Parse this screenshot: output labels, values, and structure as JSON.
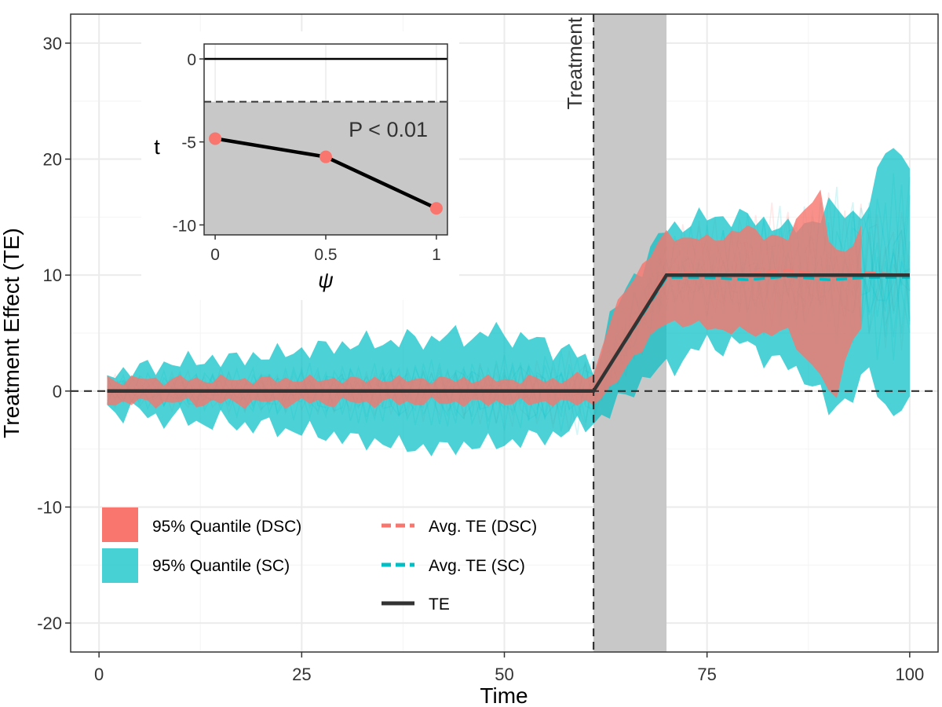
{
  "colors": {
    "dsc": "#f8766d",
    "sc": "#00bfc4",
    "te": "#333333",
    "shade": "#c8c8c8",
    "grid": "#ebebeb",
    "grid_minor": "#f4f4f4",
    "frame": "#333333"
  },
  "chart_data": [
    {
      "type": "area",
      "title": "",
      "xlabel": "Time",
      "ylabel": "Treatment Effect (TE)",
      "xlim": [
        -3.5,
        103.5
      ],
      "ylim": [
        -22.5,
        32.5
      ],
      "xticks": [
        0,
        25,
        50,
        75,
        100
      ],
      "xtick_labels": [
        "0",
        "25",
        "50",
        "75",
        "100"
      ],
      "yticks": [
        -20,
        -10,
        0,
        10,
        20,
        30
      ],
      "ytick_labels": [
        "-20",
        "-10",
        "0",
        "10",
        "20",
        "30"
      ],
      "grid": true,
      "treatment_time": 61,
      "treatment_label": "Treatment",
      "shaded_window": [
        61,
        70
      ],
      "zero_reference": 0,
      "series": [
        {
          "name": "95% Quantile (SC)",
          "kind": "ribbon",
          "x_range": [
            1,
            100
          ],
          "x_knots": [
            1,
            10,
            20,
            30,
            40,
            50,
            58,
            61,
            63,
            66,
            70,
            75,
            80,
            85,
            88,
            90,
            93,
            95,
            97,
            100
          ],
          "upper": [
            1.5,
            2.5,
            3.0,
            4.0,
            4.5,
            5.0,
            3.5,
            2.0,
            6.0,
            10.0,
            14.0,
            15.0,
            15.0,
            14.0,
            14.5,
            16.0,
            15.0,
            16.0,
            21.0,
            20.0
          ],
          "lower": [
            -1.5,
            -2.5,
            -3.0,
            -4.0,
            -5.0,
            -4.5,
            -3.5,
            -2.5,
            -2.0,
            0.5,
            2.0,
            4.0,
            4.0,
            2.0,
            1.0,
            -2.0,
            0.0,
            1.5,
            -1.5,
            -1.5
          ],
          "noise": 1.3
        },
        {
          "name": "95% Quantile (DSC)",
          "kind": "ribbon",
          "x_range": [
            1,
            94
          ],
          "x_knots": [
            1,
            10,
            20,
            30,
            40,
            50,
            58,
            61,
            63,
            66,
            70,
            75,
            80,
            85,
            87,
            89,
            90,
            91,
            92,
            94
          ],
          "upper": [
            1.0,
            1.0,
            1.0,
            1.0,
            1.0,
            1.0,
            1.0,
            1.5,
            6.0,
            10.0,
            13.5,
            13.0,
            14.0,
            13.0,
            16.0,
            17.0,
            13.0,
            12.0,
            12.0,
            14.0
          ],
          "lower": [
            -1.0,
            -1.0,
            -1.0,
            -1.0,
            -1.0,
            -1.0,
            -1.0,
            -1.0,
            0.0,
            3.0,
            6.0,
            5.5,
            5.0,
            5.0,
            3.0,
            1.5,
            -0.5,
            -0.5,
            3.0,
            5.5
          ],
          "noise": 0.6
        },
        {
          "name": "Avg. TE (DSC)",
          "kind": "line",
          "style": "dashed",
          "x": [
            1,
            61,
            70,
            75,
            80,
            85,
            90,
            95,
            100
          ],
          "y": [
            0,
            0,
            10.2,
            10.1,
            10.1,
            10.4,
            10.0,
            10.2,
            10.0
          ]
        },
        {
          "name": "Avg. TE (SC)",
          "kind": "line",
          "style": "dashed",
          "x": [
            1,
            61,
            70,
            75,
            80,
            85,
            90,
            95,
            100
          ],
          "y": [
            0,
            0,
            9.8,
            9.8,
            9.6,
            9.9,
            9.6,
            9.8,
            9.8
          ]
        },
        {
          "name": "TE",
          "kind": "line",
          "style": "solid",
          "x": [
            1,
            61,
            70,
            100
          ],
          "y": [
            0,
            0,
            10,
            10
          ]
        }
      ],
      "legend": {
        "position": "bottom-left",
        "entries": [
          {
            "label": "95% Quantile (DSC)",
            "key": "fill-dsc"
          },
          {
            "label": "95% Quantile (SC)",
            "key": "fill-sc"
          },
          {
            "label": "Avg. TE (DSC)",
            "key": "dash-dsc"
          },
          {
            "label": "Avg. TE (SC)",
            "key": "dash-sc"
          },
          {
            "label": "TE",
            "key": "solid-te"
          }
        ]
      }
    },
    {
      "type": "line",
      "title": "",
      "xlabel": "ψ",
      "ylabel": "t",
      "x": [
        0,
        0.5,
        1
      ],
      "y": [
        -4.8,
        -5.9,
        -9.0
      ],
      "xlim": [
        -0.05,
        1.05
      ],
      "ylim": [
        -10.6,
        0.9
      ],
      "xticks": [
        0,
        0.5,
        1
      ],
      "xtick_labels": [
        "0",
        "0.5",
        "1"
      ],
      "yticks": [
        -10,
        -5,
        0
      ],
      "ytick_labels": [
        "-10",
        "-5",
        "0"
      ],
      "zero_line": 0,
      "critical_value": -2.58,
      "annotation": "P < 0.01"
    }
  ]
}
